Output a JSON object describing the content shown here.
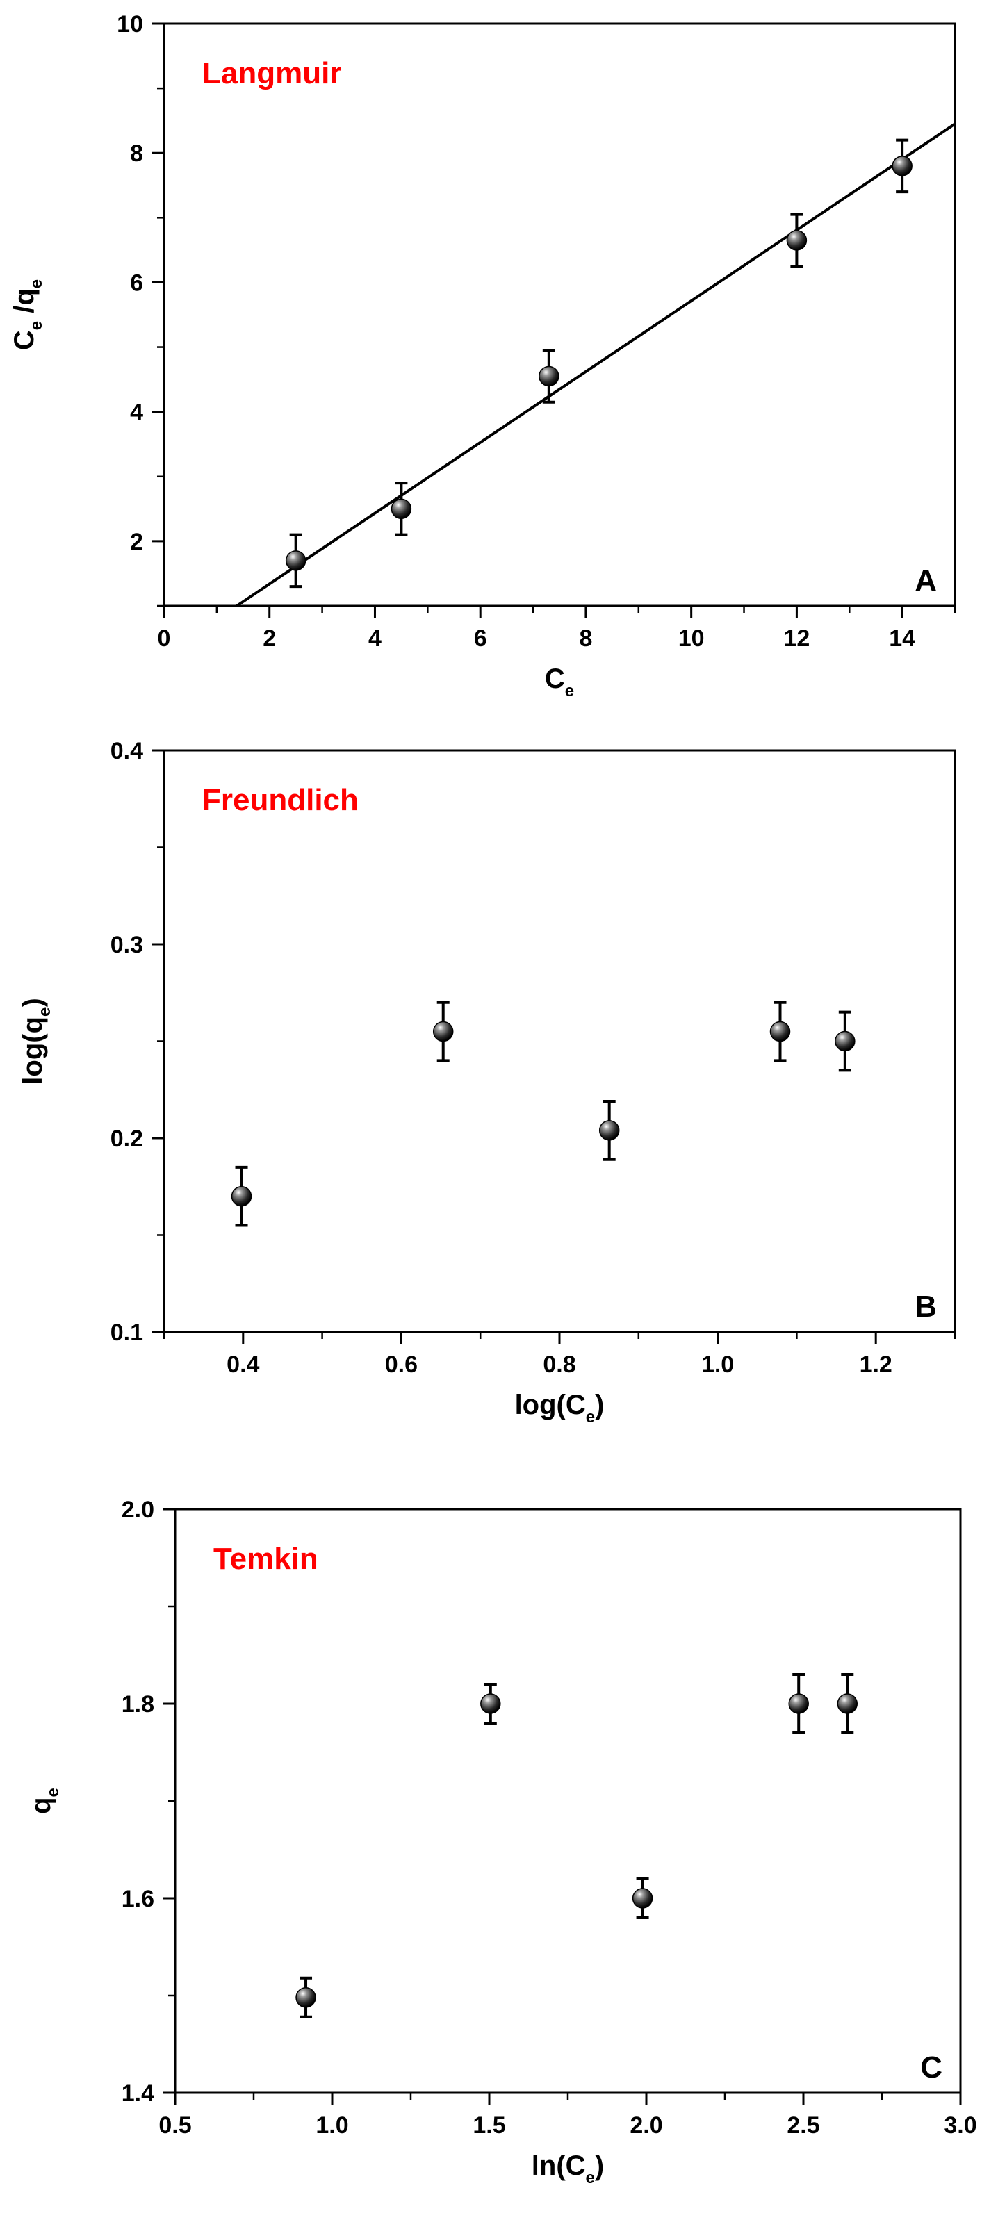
{
  "colors": {
    "title": "#ff0000",
    "marker": "#222222",
    "axis": "#000000"
  },
  "chart_data": [
    {
      "type": "scatter",
      "title": "Langmuir",
      "panel": "A",
      "xlabel": {
        "main": "C",
        "sub": "e"
      },
      "ylabel": {
        "parts": [
          {
            "t": "C",
            "s": "e"
          },
          {
            "t": " /q",
            "s": "e"
          }
        ]
      },
      "xlim": [
        0,
        15
      ],
      "ylim": [
        1,
        10
      ],
      "xticks": [
        0,
        2,
        4,
        6,
        8,
        10,
        12,
        14
      ],
      "yticks": [
        2,
        4,
        6,
        8,
        10
      ],
      "x_minor_step": 1,
      "y_minor_step": 1,
      "points": [
        {
          "x": 2.5,
          "y": 1.7,
          "err": 0.4
        },
        {
          "x": 4.5,
          "y": 2.5,
          "err": 0.4
        },
        {
          "x": 7.3,
          "y": 4.55,
          "err": 0.4
        },
        {
          "x": 12.0,
          "y": 6.65,
          "err": 0.4
        },
        {
          "x": 14.0,
          "y": 7.8,
          "err": 0.4
        }
      ],
      "fit_line": {
        "x": [
          1.38,
          15
        ],
        "y": [
          1.0,
          8.45
        ]
      }
    },
    {
      "type": "scatter",
      "title": "Freundlich",
      "panel": "B",
      "xlabel": {
        "parts": [
          {
            "t": "log(C",
            "s": "e"
          },
          {
            "t": ")",
            "s": ""
          }
        ]
      },
      "ylabel": {
        "parts": [
          {
            "t": "log(q",
            "s": "e"
          },
          {
            "t": ")",
            "s": ""
          }
        ]
      },
      "xlim": [
        0.3,
        1.3
      ],
      "ylim": [
        0.1,
        0.4
      ],
      "xticks": [
        0.4,
        0.6,
        0.8,
        1.0,
        1.2
      ],
      "xtick_labels": [
        "0.4",
        "0.6",
        "0.8",
        "1.0",
        "1.2"
      ],
      "yticks": [
        0.1,
        0.2,
        0.3,
        0.4
      ],
      "ytick_labels": [
        "0.1",
        "0.2",
        "0.3",
        "0.4"
      ],
      "x_minor_step": 0.1,
      "y_minor_step": 0.05,
      "points": [
        {
          "x": 0.398,
          "y": 0.17,
          "err": 0.015
        },
        {
          "x": 0.653,
          "y": 0.255,
          "err": 0.015
        },
        {
          "x": 0.863,
          "y": 0.204,
          "err": 0.015
        },
        {
          "x": 1.079,
          "y": 0.255,
          "err": 0.015
        },
        {
          "x": 1.161,
          "y": 0.25,
          "err": 0.015
        }
      ]
    },
    {
      "type": "scatter",
      "title": "Temkin",
      "panel": "C",
      "xlabel": {
        "parts": [
          {
            "t": "ln(C",
            "s": "e"
          },
          {
            "t": ")",
            "s": ""
          }
        ]
      },
      "ylabel": {
        "parts": [
          {
            "t": "q",
            "s": "e"
          }
        ]
      },
      "xlim": [
        0.5,
        3.0
      ],
      "ylim": [
        1.4,
        2.0
      ],
      "xticks": [
        0.5,
        1.0,
        1.5,
        2.0,
        2.5,
        3.0
      ],
      "xtick_labels": [
        "0.5",
        "1.0",
        "1.5",
        "2.0",
        "2.5",
        "3.0"
      ],
      "yticks": [
        1.4,
        1.6,
        1.8,
        2.0
      ],
      "ytick_labels": [
        "1.4",
        "1.6",
        "1.8",
        "2.0"
      ],
      "x_minor_step": 0.25,
      "y_minor_step": 0.1,
      "points": [
        {
          "x": 0.916,
          "y": 1.498,
          "err": 0.02
        },
        {
          "x": 1.504,
          "y": 1.8,
          "err": 0.02
        },
        {
          "x": 1.988,
          "y": 1.6,
          "err": 0.02
        },
        {
          "x": 2.485,
          "y": 1.8,
          "err": 0.03
        },
        {
          "x": 2.64,
          "y": 1.8,
          "err": 0.03
        }
      ]
    }
  ]
}
